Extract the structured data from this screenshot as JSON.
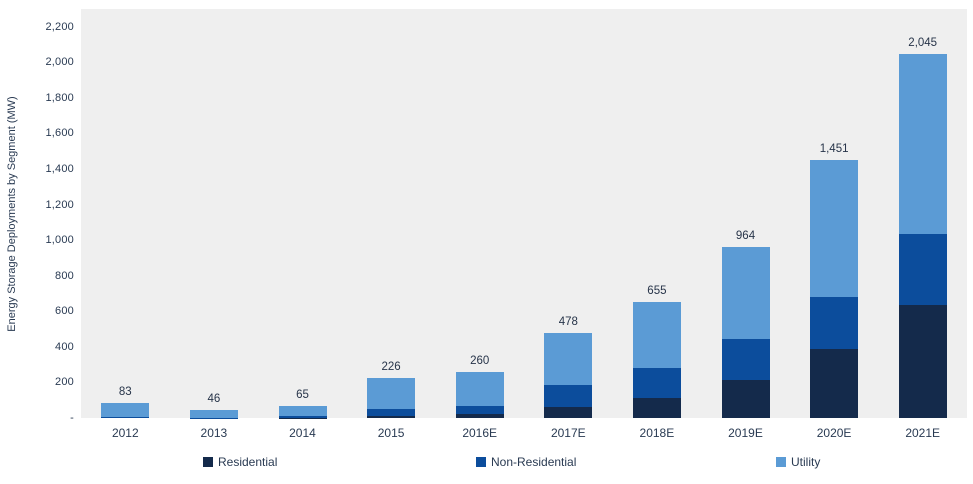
{
  "chart_data": {
    "type": "bar",
    "stacked": true,
    "ylabel": "Energy Storage Deployments by Segment (MW)",
    "categories": [
      "2012",
      "2013",
      "2014",
      "2015",
      "2016E",
      "2017E",
      "2018E",
      "2019E",
      "2020E",
      "2021E"
    ],
    "series": [
      {
        "name": "Residential",
        "color": "#142a4b",
        "values": [
          0,
          0,
          2,
          10,
          20,
          60,
          110,
          215,
          390,
          635
        ]
      },
      {
        "name": "Non-Residential",
        "color": "#0c4d9c",
        "values": [
          3,
          2,
          8,
          38,
          45,
          125,
          170,
          230,
          290,
          400
        ]
      },
      {
        "name": "Utility",
        "color": "#5b9bd5",
        "values": [
          80,
          44,
          55,
          178,
          195,
          293,
          375,
          519,
          771,
          1010
        ]
      }
    ],
    "totals": [
      83,
      46,
      65,
      226,
      260,
      478,
      655,
      964,
      1451,
      2045
    ],
    "total_labels": [
      "83",
      "46",
      "65",
      "226",
      "260",
      "478",
      "655",
      "964",
      "1,451",
      "2,045"
    ],
    "y_ticks": [
      {
        "value": 2200,
        "label": "2,200"
      },
      {
        "value": 2000,
        "label": "2,000"
      },
      {
        "value": 1800,
        "label": "1,800"
      },
      {
        "value": 1600,
        "label": "1,600"
      },
      {
        "value": 1400,
        "label": "1,400"
      },
      {
        "value": 1200,
        "label": "1,200"
      },
      {
        "value": 1000,
        "label": "1,000"
      },
      {
        "value": 800,
        "label": "800"
      },
      {
        "value": 600,
        "label": "600"
      },
      {
        "value": 400,
        "label": "400"
      },
      {
        "value": 200,
        "label": "200"
      },
      {
        "value": 0,
        "label": "-"
      }
    ],
    "ylim": [
      0,
      2300
    ],
    "grid": false,
    "legend_position": "bottom",
    "plot_bg": "#efefef"
  }
}
